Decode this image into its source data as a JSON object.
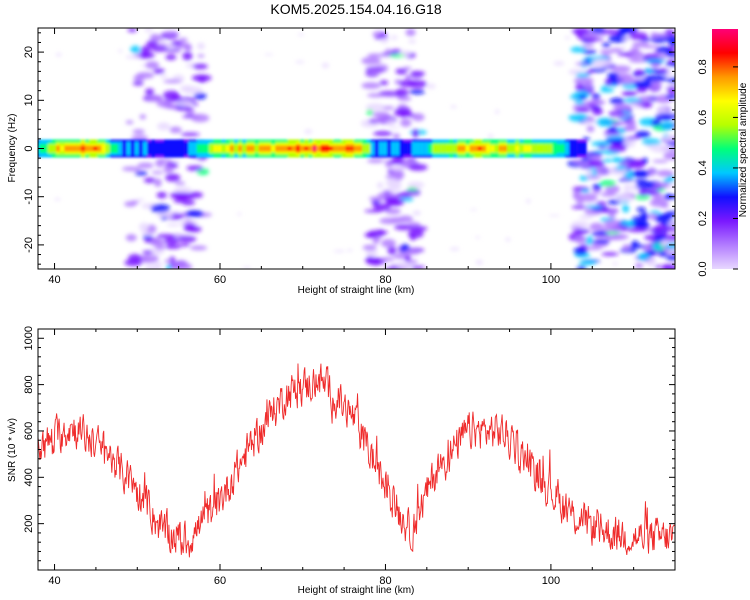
{
  "title": "KOM5.2025.154.04.16.G18",
  "colors": {
    "snr_line": "#ef2b2b",
    "background": "#ffffff",
    "axis": "#000000",
    "colormap": [
      "#ffffff",
      "#e8d8ff",
      "#b27cff",
      "#7a18ff",
      "#1010ff",
      "#00c8ff",
      "#00ff7a",
      "#b6ff00",
      "#ffff00",
      "#ff9900",
      "#ff0000",
      "#ff0077"
    ]
  },
  "chart_data": [
    {
      "type": "heatmap",
      "xlabel": "Height of straight line (km)",
      "ylabel": "Frequency (Hz)",
      "xlim": [
        38,
        115
      ],
      "ylim": [
        -25,
        25
      ],
      "xticks": [
        40,
        60,
        80,
        100
      ],
      "yticks": [
        -20,
        -10,
        0,
        10,
        20
      ],
      "colorbar": {
        "label": "Normalized spectral amplitude",
        "range": [
          0,
          0.95
        ],
        "ticks": [
          "0.0",
          "0.2",
          "0.4",
          "0.6",
          "0.8"
        ]
      },
      "ridge": {
        "frequency": 0,
        "segments": [
          {
            "x_start": 38,
            "x_end": 104,
            "amplitude_profile": [
              [
                38,
                0.5
              ],
              [
                42,
                0.85
              ],
              [
                45,
                0.8
              ],
              [
                48,
                0.45
              ],
              [
                53,
                0.35
              ],
              [
                56,
                0.4
              ],
              [
                60,
                0.7
              ],
              [
                64,
                0.75
              ],
              [
                68,
                0.8
              ],
              [
                72,
                0.9
              ],
              [
                76,
                0.85
              ],
              [
                79,
                0.45
              ],
              [
                83,
                0.35
              ],
              [
                86,
                0.6
              ],
              [
                90,
                0.8
              ],
              [
                94,
                0.75
              ],
              [
                98,
                0.7
              ],
              [
                101,
                0.55
              ],
              [
                104,
                0.3
              ]
            ]
          }
        ]
      },
      "noise_bands_km": [
        [
          49,
          58
        ],
        [
          78,
          84
        ],
        [
          103,
          115
        ]
      ]
    },
    {
      "type": "line",
      "xlabel": "Height of straight line (km)",
      "ylabel": "SNR (10 * v/v)",
      "xlim": [
        38,
        115
      ],
      "ylim": [
        0,
        1040
      ],
      "xticks": [
        40,
        60,
        80,
        100
      ],
      "yticks": [
        200,
        400,
        600,
        800,
        1000
      ],
      "trend": {
        "x": [
          38,
          42,
          46,
          50,
          53,
          56,
          60,
          64,
          68,
          72,
          76,
          80,
          83,
          86,
          90,
          94,
          98,
          102,
          106,
          110,
          115
        ],
        "y": [
          520,
          620,
          520,
          340,
          170,
          120,
          300,
          560,
          760,
          820,
          660,
          360,
          160,
          420,
          600,
          600,
          430,
          250,
          170,
          140,
          140
        ]
      },
      "noise_amplitude": 110
    }
  ]
}
